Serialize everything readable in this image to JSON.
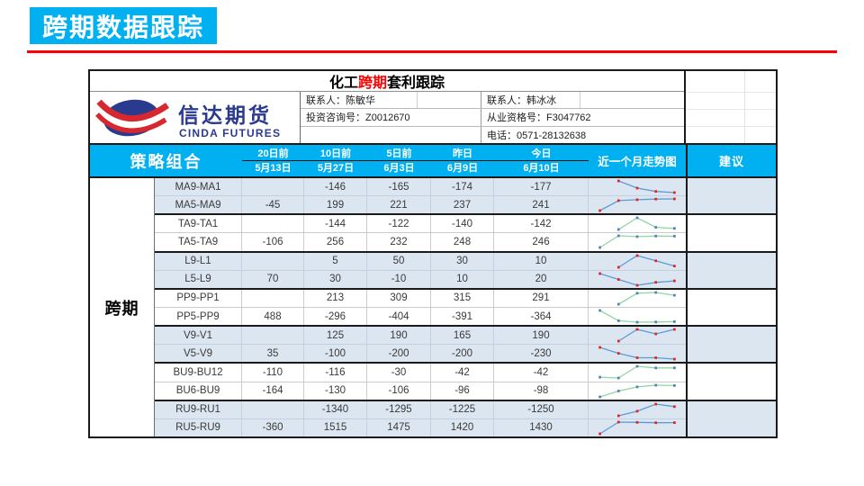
{
  "page": {
    "banner_title": "跨期数据跟踪"
  },
  "header": {
    "table_title_prefix": "化工",
    "table_title_highlight": "跨期",
    "table_title_suffix": "套利跟踪",
    "logo": {
      "cn": "信达期货",
      "en": "CINDA FUTURES"
    },
    "contacts": {
      "contact_left": "联系人：陈敏华",
      "contact_right": "联系人：韩冰冰",
      "advisory": "投资咨询号：Z0012670",
      "qualification": "从业资格号：F3047762",
      "phone": "电话：0571-28132638"
    }
  },
  "table": {
    "category_label": "跨期",
    "strategy_header": "策略组合",
    "columns": [
      {
        "label": "20日前",
        "date": "5月13日"
      },
      {
        "label": "10日前",
        "date": "5月27日"
      },
      {
        "label": "5日前",
        "date": "6月3日"
      },
      {
        "label": "昨日",
        "date": "6月9日"
      },
      {
        "label": "今日",
        "date": "6月10日"
      }
    ],
    "spark_header": "近一个月走势图",
    "advice_header": "建议",
    "groups": [
      {
        "shade": "blue",
        "advice": "",
        "rows": [
          {
            "name": "MA9-MA1",
            "values": [
              null,
              -146,
              -165,
              -174,
              -177
            ]
          },
          {
            "name": "MA5-MA9",
            "values": [
              -45,
              199,
              221,
              237,
              241
            ]
          }
        ]
      },
      {
        "shade": "white",
        "advice": "",
        "rows": [
          {
            "name": "TA9-TA1",
            "values": [
              null,
              -144,
              -122,
              -140,
              -142
            ]
          },
          {
            "name": "TA5-TA9",
            "values": [
              -106,
              256,
              232,
              248,
              246
            ]
          }
        ]
      },
      {
        "shade": "blue",
        "advice": "",
        "rows": [
          {
            "name": "L9-L1",
            "values": [
              null,
              5,
              50,
              30,
              10
            ]
          },
          {
            "name": "L5-L9",
            "values": [
              70,
              30,
              -10,
              10,
              20
            ]
          }
        ]
      },
      {
        "shade": "white",
        "advice": "",
        "rows": [
          {
            "name": "PP9-PP1",
            "values": [
              null,
              213,
              309,
              315,
              291
            ]
          },
          {
            "name": "PP5-PP9",
            "values": [
              488,
              -296,
              -404,
              -391,
              -364
            ]
          }
        ]
      },
      {
        "shade": "blue",
        "advice": "",
        "rows": [
          {
            "name": "V9-V1",
            "values": [
              null,
              125,
              190,
              165,
              190
            ]
          },
          {
            "name": "V5-V9",
            "values": [
              35,
              -100,
              -200,
              -200,
              -230
            ]
          }
        ]
      },
      {
        "shade": "white",
        "advice": "",
        "rows": [
          {
            "name": "BU9-BU12",
            "values": [
              -110,
              -116,
              -30,
              -42,
              -42
            ]
          },
          {
            "name": "BU6-BU9",
            "values": [
              -164,
              -130,
              -106,
              -96,
              -98
            ]
          }
        ]
      },
      {
        "shade": "blue",
        "advice": "",
        "rows": [
          {
            "name": "RU9-RU1",
            "values": [
              null,
              -1340,
              -1295,
              -1225,
              -1250
            ]
          },
          {
            "name": "RU5-RU9",
            "values": [
              -360,
              1515,
              1475,
              1420,
              1430
            ]
          }
        ]
      }
    ]
  },
  "colors": {
    "accent_cyan": "#00B0F0",
    "divider_red": "#FF0000",
    "row_blue": "#dce6f1",
    "spark_line_blue": "#5b9bd5",
    "spark_marker_red": "#e32222",
    "spark_line_green": "#8fd6a0",
    "spark_marker_blue": "#4f81bd"
  }
}
